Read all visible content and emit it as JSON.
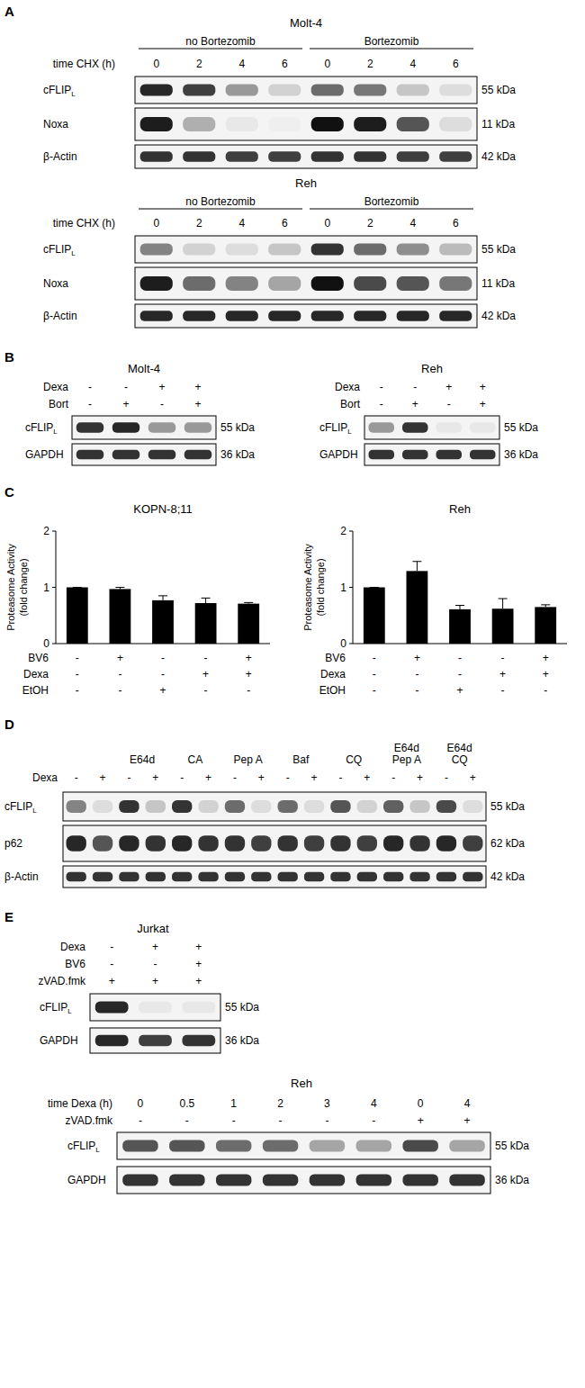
{
  "panels": [
    {
      "label": "A",
      "sections": [
        {
          "title": "Molt-4",
          "groups": [
            {
              "text": [
                "no Bortezomib"
              ],
              "lanes": 4
            },
            {
              "text": [
                "Bortezomib"
              ],
              "lanes": 4
            }
          ],
          "conditions": [
            {
              "label": "time CHX (h)",
              "values": [
                "0",
                "2",
                "4",
                "6",
                "0",
                "2",
                "4",
                "6"
              ]
            }
          ],
          "rows": [
            {
              "name": "cFLIP",
              "subscript": "L",
              "size": "55 kDa",
              "intensity": [
                0.9,
                0.8,
                0.4,
                0.15,
                0.6,
                0.55,
                0.2,
                0.1
              ]
            },
            {
              "name": "Noxa",
              "size": "11 kDa",
              "intensity": [
                0.95,
                0.3,
                0.05,
                0.02,
                1,
                0.95,
                0.7,
                0.1
              ]
            },
            {
              "name": "β-Actin",
              "size": "42 kDa",
              "intensity": [
                0.85,
                0.85,
                0.8,
                0.8,
                0.85,
                0.85,
                0.8,
                0.8
              ]
            }
          ]
        },
        {
          "title": "Reh",
          "groups": [
            {
              "text": [
                "no Bortezomib"
              ],
              "lanes": 4
            },
            {
              "text": [
                "Bortezomib"
              ],
              "lanes": 4
            }
          ],
          "conditions": [
            {
              "label": "time CHX (h)",
              "values": [
                "0",
                "2",
                "4",
                "6",
                "0",
                "2",
                "4",
                "6"
              ]
            }
          ],
          "rows": [
            {
              "name": "cFLIP",
              "subscript": "L",
              "size": "55 kDa",
              "intensity": [
                0.5,
                0.15,
                0.1,
                0.2,
                0.85,
                0.6,
                0.45,
                0.25
              ]
            },
            {
              "name": "Noxa",
              "size": "11 kDa",
              "intensity": [
                0.95,
                0.6,
                0.5,
                0.35,
                1,
                0.75,
                0.7,
                0.55
              ]
            },
            {
              "name": "β-Actin",
              "size": "42 kDa",
              "intensity": [
                0.9,
                0.9,
                0.9,
                0.9,
                0.9,
                0.9,
                0.9,
                0.9
              ]
            }
          ]
        }
      ]
    },
    {
      "label": "B",
      "sections": [
        {
          "title": "Molt-4",
          "conditions": [
            {
              "label": "Dexa",
              "values": [
                "-",
                "-",
                "+",
                "+"
              ]
            },
            {
              "label": "Bort",
              "values": [
                "-",
                "+",
                "-",
                "+"
              ]
            }
          ],
          "rows": [
            {
              "name": "cFLIP",
              "subscript": "L",
              "size": "55 kDa",
              "intensity": [
                0.85,
                0.9,
                0.4,
                0.4
              ]
            },
            {
              "name": "GAPDH",
              "size": "36 kDa",
              "intensity": [
                0.85,
                0.85,
                0.85,
                0.85
              ]
            }
          ]
        },
        {
          "title": "Reh",
          "conditions": [
            {
              "label": "Dexa",
              "values": [
                "-",
                "-",
                "+",
                "+"
              ]
            },
            {
              "label": "Bort",
              "values": [
                "-",
                "+",
                "-",
                "+"
              ]
            }
          ],
          "rows": [
            {
              "name": "cFLIP",
              "subscript": "L",
              "size": "55 kDa",
              "intensity": [
                0.4,
                0.85,
                0.05,
                0.05
              ]
            },
            {
              "name": "GAPDH",
              "size": "36 kDa",
              "intensity": [
                0.85,
                0.85,
                0.85,
                0.85
              ]
            }
          ]
        }
      ]
    },
    {
      "label": "C"
    },
    {
      "label": "D",
      "sections": [
        {
          "groups": [
            {
              "lanes": 2
            },
            {
              "text": [
                "E64d"
              ],
              "lanes": 2
            },
            {
              "text": [
                "CA"
              ],
              "lanes": 2
            },
            {
              "text": [
                "Pep A"
              ],
              "lanes": 2
            },
            {
              "text": [
                "Baf"
              ],
              "lanes": 2
            },
            {
              "text": [
                "CQ"
              ],
              "lanes": 2
            },
            {
              "text": [
                "E64d",
                "Pep A"
              ],
              "lanes": 2
            },
            {
              "text": [
                "E64d",
                "CQ"
              ],
              "lanes": 2
            }
          ],
          "conditions": [
            {
              "label": "Dexa",
              "values": [
                "-",
                "+",
                "-",
                "+",
                "-",
                "+",
                "-",
                "+",
                "-",
                "+",
                "-",
                "+",
                "-",
                "+",
                "-",
                "+"
              ]
            }
          ],
          "rows": [
            {
              "name": "cFLIP",
              "subscript": "L",
              "size": "55 kDa",
              "intensity": [
                0.5,
                0.1,
                0.85,
                0.2,
                0.85,
                0.15,
                0.6,
                0.1,
                0.6,
                0.1,
                0.7,
                0.15,
                0.65,
                0.2,
                0.75,
                0.1
              ]
            },
            {
              "name": "p62",
              "size": "62 kDa",
              "intensity": [
                0.9,
                0.7,
                0.9,
                0.85,
                0.9,
                0.85,
                0.85,
                0.8,
                0.85,
                0.8,
                0.85,
                0.8,
                0.9,
                0.85,
                0.9,
                0.8
              ]
            },
            {
              "name": "β-Actin",
              "size": "42 kDa",
              "intensity": [
                0.85,
                0.85,
                0.85,
                0.85,
                0.85,
                0.85,
                0.85,
                0.85,
                0.85,
                0.85,
                0.85,
                0.85,
                0.85,
                0.85,
                0.85,
                0.85
              ]
            }
          ]
        }
      ]
    },
    {
      "label": "E",
      "sections": [
        {
          "title": "Jurkat",
          "conditions": [
            {
              "label": "Dexa",
              "values": [
                "-",
                "+",
                "+"
              ]
            },
            {
              "label": "BV6",
              "values": [
                "-",
                "-",
                "+"
              ]
            },
            {
              "label": "zVAD.fmk",
              "values": [
                "+",
                "+",
                "+"
              ]
            }
          ],
          "rows": [
            {
              "name": "cFLIP",
              "subscript": "L",
              "size": "55 kDa",
              "intensity": [
                0.9,
                0.05,
                0.05
              ]
            },
            {
              "name": "GAPDH",
              "size": "36 kDa",
              "intensity": [
                0.9,
                0.8,
                0.85
              ]
            }
          ]
        },
        {
          "title": "Reh",
          "conditions": [
            {
              "label": "time Dexa (h)",
              "values": [
                "0",
                "0.5",
                "1",
                "2",
                "3",
                "4",
                "0",
                "4"
              ]
            },
            {
              "label": "zVAD.fmk",
              "values": [
                "-",
                "-",
                "-",
                "-",
                "-",
                "-",
                "+",
                "+"
              ]
            }
          ],
          "rows": [
            {
              "name": "cFLIP",
              "subscript": "L",
              "size": "55 kDa",
              "intensity": [
                0.7,
                0.7,
                0.6,
                0.6,
                0.35,
                0.35,
                0.75,
                0.35
              ]
            },
            {
              "name": "GAPDH",
              "size": "36 kDa",
              "intensity": [
                0.85,
                0.85,
                0.85,
                0.85,
                0.85,
                0.85,
                0.85,
                0.85
              ]
            }
          ]
        }
      ]
    }
  ],
  "chart_data": [
    {
      "type": "bar",
      "title": "KOPN-8;11",
      "y_label": [
        "Proteasome Activity",
        "(fold change)"
      ],
      "categories": [
        null,
        null,
        null,
        null,
        null
      ],
      "values": [
        1,
        0.97,
        0.77,
        0.72,
        0.71
      ],
      "errors": [
        0,
        0.03,
        0.08,
        0.09,
        0.02
      ],
      "color": "#000000",
      "ylim": [
        0,
        2
      ],
      "yticks": [
        0,
        1,
        2
      ],
      "tick_labels": "y",
      "conditions": [
        {
          "label": "BV6",
          "values": [
            "-",
            "+",
            "-",
            "-",
            "+"
          ]
        },
        {
          "label": "Dexa",
          "values": [
            "-",
            "-",
            "-",
            "+",
            "+"
          ]
        },
        {
          "label": "EtOH",
          "values": [
            "-",
            "-",
            "+",
            "-",
            "-"
          ]
        }
      ]
    },
    {
      "type": "bar",
      "title": "Reh",
      "y_label": [
        "Proteasome Activity",
        "(fold change)"
      ],
      "categories": [
        null,
        null,
        null,
        null,
        null
      ],
      "values": [
        1,
        1.29,
        0.61,
        0.62,
        0.65
      ],
      "errors": [
        0,
        0.17,
        0.07,
        0.18,
        0.04
      ],
      "color": "#000000",
      "ylim": [
        0,
        2
      ],
      "yticks": [
        0,
        1,
        2
      ],
      "tick_labels": "y",
      "conditions": [
        {
          "label": "BV6",
          "values": [
            "-",
            "+",
            "-",
            "-",
            "+"
          ]
        },
        {
          "label": "Dexa",
          "values": [
            "-",
            "-",
            "-",
            "+",
            "+"
          ]
        },
        {
          "label": "EtOH",
          "values": [
            "-",
            "-",
            "+",
            "-",
            "-"
          ]
        }
      ]
    }
  ]
}
